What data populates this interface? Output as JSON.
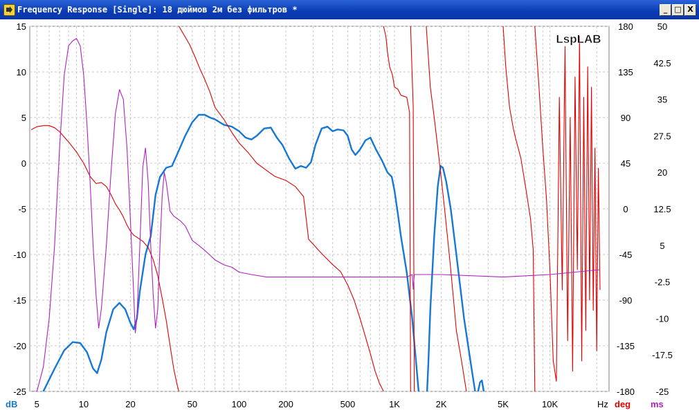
{
  "window": {
    "title": "Frequency Response [Single]: 18 дюймов 2м без фильтров *",
    "buttons": {
      "minimize": "_",
      "maximize": "□",
      "close": "X"
    }
  },
  "watermark": "LspLAB",
  "colors": {
    "db": "#1478d4",
    "deg": "#e00000",
    "ms": "#b020c0",
    "grid": "#c8c8c8"
  },
  "chart_data": {
    "type": "line",
    "x_scale": "log",
    "xlim": [
      4.5,
      24000
    ],
    "x_ticks": [
      {
        "v": 5,
        "label": "5"
      },
      {
        "v": 10,
        "label": "10"
      },
      {
        "v": 20,
        "label": "20"
      },
      {
        "v": 50,
        "label": "50"
      },
      {
        "v": 100,
        "label": "100"
      },
      {
        "v": 200,
        "label": "200"
      },
      {
        "v": 500,
        "label": "500"
      },
      {
        "v": 1000,
        "label": "1K"
      },
      {
        "v": 2000,
        "label": "2K"
      },
      {
        "v": 5000,
        "label": "5K"
      },
      {
        "v": 10000,
        "label": "10K"
      }
    ],
    "x_unit": "Hz",
    "grid": true,
    "axes": {
      "db": {
        "label": "dB",
        "range": [
          -25,
          15
        ],
        "ticks": [
          "15",
          "10",
          "5",
          "0",
          "-5",
          "-10",
          "-15",
          "-20",
          "-25"
        ]
      },
      "deg": {
        "label": "deg",
        "range": [
          -180,
          180
        ],
        "ticks": [
          "180",
          "135",
          "90",
          "45",
          "0",
          "-45",
          "-90",
          "-135",
          "-180"
        ]
      },
      "ms": {
        "label": "ms",
        "range": [
          -25,
          50
        ],
        "ticks": [
          "50",
          "42.5",
          "35",
          "27.5",
          "20",
          "12.5",
          "5",
          "-2.5",
          "-10",
          "-17.5",
          "-25"
        ]
      }
    },
    "series": [
      {
        "axis": "db",
        "color": "#1478d4",
        "points": [
          [
            5.5,
            -25
          ],
          [
            6.5,
            -22.5
          ],
          [
            7.5,
            -20.5
          ],
          [
            8.5,
            -19.6
          ],
          [
            9.5,
            -19.7
          ],
          [
            10.5,
            -20.7
          ],
          [
            11.5,
            -22.5
          ],
          [
            12.2,
            -23
          ],
          [
            13,
            -21.5
          ],
          [
            14,
            -18.5
          ],
          [
            15.5,
            -16
          ],
          [
            17,
            -15.3
          ],
          [
            18.5,
            -16
          ],
          [
            20,
            -17.5
          ],
          [
            21,
            -18.2
          ],
          [
            22,
            -17
          ],
          [
            23,
            -14
          ],
          [
            25,
            -10
          ],
          [
            27,
            -8
          ],
          [
            29,
            -3.5
          ],
          [
            31,
            -1.5
          ],
          [
            34,
            -0.5
          ],
          [
            37,
            -0.3
          ],
          [
            40,
            1
          ],
          [
            45,
            3
          ],
          [
            50,
            4.5
          ],
          [
            55,
            5.3
          ],
          [
            60,
            5.3
          ],
          [
            65,
            5
          ],
          [
            70,
            4.8
          ],
          [
            80,
            4.2
          ],
          [
            90,
            4
          ],
          [
            100,
            3.5
          ],
          [
            110,
            2.8
          ],
          [
            120,
            2.6
          ],
          [
            130,
            3
          ],
          [
            145,
            3.8
          ],
          [
            160,
            3.9
          ],
          [
            175,
            2.8
          ],
          [
            190,
            2
          ],
          [
            210,
            0.5
          ],
          [
            230,
            -0.6
          ],
          [
            250,
            -0.3
          ],
          [
            270,
            -0.5
          ],
          [
            290,
            0.1
          ],
          [
            310,
            2
          ],
          [
            340,
            3.8
          ],
          [
            370,
            4
          ],
          [
            400,
            3.5
          ],
          [
            430,
            3.7
          ],
          [
            470,
            3.6
          ],
          [
            500,
            3
          ],
          [
            530,
            1.5
          ],
          [
            560,
            0.9
          ],
          [
            600,
            1.5
          ],
          [
            650,
            2.5
          ],
          [
            700,
            2.8
          ],
          [
            760,
            1.5
          ],
          [
            830,
            0.3
          ],
          [
            900,
            -1
          ],
          [
            960,
            -1.5
          ],
          [
            1000,
            -3
          ],
          [
            1050,
            -5.5
          ],
          [
            1100,
            -8
          ],
          [
            1200,
            -12
          ],
          [
            1300,
            -17
          ],
          [
            1380,
            -22
          ],
          [
            1430,
            -25
          ]
        ]
      },
      {
        "axis": "db",
        "color": "#1478d4",
        "points": [
          [
            1620,
            -25
          ],
          [
            1650,
            -22
          ],
          [
            1700,
            -16
          ],
          [
            1800,
            -8
          ],
          [
            1900,
            -2.5
          ],
          [
            1980,
            -0.3
          ],
          [
            2050,
            -0.5
          ],
          [
            2150,
            -2
          ],
          [
            2300,
            -5
          ],
          [
            2500,
            -10
          ],
          [
            2800,
            -17
          ],
          [
            3100,
            -22
          ],
          [
            3300,
            -25
          ]
        ]
      },
      {
        "axis": "db",
        "color": "#1478d4",
        "points": [
          [
            3450,
            -25
          ],
          [
            3550,
            -24
          ],
          [
            3650,
            -23.8
          ],
          [
            3750,
            -25
          ]
        ]
      },
      {
        "axis": "deg",
        "color": "#e00000",
        "points": [
          [
            4.6,
            78
          ],
          [
            5,
            81
          ],
          [
            5.5,
            82
          ],
          [
            6,
            82
          ],
          [
            6.5,
            80
          ],
          [
            7,
            76
          ],
          [
            8,
            66
          ],
          [
            9,
            56
          ],
          [
            10,
            45
          ],
          [
            11,
            32
          ],
          [
            12,
            25
          ],
          [
            13,
            26
          ],
          [
            14,
            22
          ],
          [
            15,
            14
          ],
          [
            16,
            5
          ],
          [
            17,
            -1
          ],
          [
            18,
            -8
          ],
          [
            19,
            -16
          ],
          [
            20,
            -22
          ],
          [
            21,
            -26
          ],
          [
            22,
            -28
          ],
          [
            24,
            -32
          ],
          [
            26,
            -38
          ],
          [
            28,
            -50
          ],
          [
            30,
            -66
          ],
          [
            32,
            -88
          ],
          [
            34,
            -110
          ],
          [
            36,
            -135
          ],
          [
            38,
            -158
          ],
          [
            40,
            -174
          ],
          [
            41,
            -180
          ]
        ]
      },
      {
        "axis": "deg",
        "color": "#e00000",
        "points": [
          [
            41,
            180
          ],
          [
            44,
            172
          ],
          [
            48,
            162
          ],
          [
            52,
            150
          ],
          [
            56,
            138
          ],
          [
            60,
            128
          ],
          [
            65,
            115
          ],
          [
            70,
            100
          ],
          [
            80,
            88
          ],
          [
            90,
            75
          ],
          [
            100,
            65
          ],
          [
            115,
            55
          ],
          [
            130,
            45
          ],
          [
            150,
            38
          ],
          [
            170,
            32
          ],
          [
            200,
            28
          ],
          [
            230,
            22
          ],
          [
            260,
            12
          ],
          [
            280,
            -30
          ],
          [
            300,
            -35
          ],
          [
            330,
            -42
          ],
          [
            360,
            -48
          ],
          [
            400,
            -55
          ],
          [
            450,
            -62
          ],
          [
            500,
            -75
          ],
          [
            550,
            -90
          ],
          [
            600,
            -108
          ],
          [
            650,
            -126
          ],
          [
            700,
            -143
          ],
          [
            750,
            -160
          ],
          [
            800,
            -172
          ],
          [
            850,
            -180
          ]
        ]
      },
      {
        "axis": "deg",
        "color": "#e00000",
        "points": [
          [
            850,
            180
          ],
          [
            880,
            170
          ],
          [
            900,
            155
          ],
          [
            930,
            140
          ],
          [
            970,
            132
          ],
          [
            1000,
            120
          ],
          [
            1050,
            118
          ],
          [
            1100,
            112
          ],
          [
            1200,
            110
          ],
          [
            1250,
            95
          ],
          [
            1270,
            -180
          ]
        ]
      },
      {
        "axis": "deg",
        "color": "#e00000",
        "points": [
          [
            1270,
            180
          ],
          [
            1300,
            130
          ],
          [
            1320,
            100
          ],
          [
            1340,
            -180
          ]
        ]
      },
      {
        "axis": "deg",
        "color": "#e00000",
        "points": [
          [
            1600,
            180
          ],
          [
            1650,
            150
          ],
          [
            1700,
            120
          ],
          [
            1800,
            90
          ],
          [
            1900,
            60
          ],
          [
            2000,
            30
          ],
          [
            2100,
            0
          ],
          [
            2200,
            -30
          ],
          [
            2300,
            -60
          ],
          [
            2400,
            -90
          ],
          [
            2500,
            -120
          ],
          [
            2700,
            -150
          ],
          [
            2900,
            -180
          ]
        ]
      },
      {
        "axis": "deg",
        "color": "#e00000",
        "points": [
          [
            5000,
            180
          ],
          [
            5200,
            140
          ],
          [
            5500,
            100
          ],
          [
            5800,
            80
          ],
          [
            6000,
            70
          ],
          [
            6500,
            50
          ],
          [
            7000,
            20
          ],
          [
            7500,
            -10
          ],
          [
            7800,
            -40
          ],
          [
            8000,
            -180
          ]
        ]
      },
      {
        "axis": "deg",
        "color": "#e00000",
        "points": [
          [
            8000,
            180
          ],
          [
            8500,
            120
          ],
          [
            9000,
            60
          ],
          [
            9500,
            10
          ],
          [
            10000,
            -60
          ],
          [
            10500,
            -150
          ],
          [
            11000,
            -170
          ],
          [
            11500,
            110
          ],
          [
            12000,
            -80
          ],
          [
            12500,
            160
          ],
          [
            13000,
            -130
          ],
          [
            13500,
            90
          ],
          [
            14000,
            -160
          ],
          [
            14500,
            130
          ],
          [
            15000,
            -60
          ],
          [
            15500,
            170
          ],
          [
            16000,
            -150
          ],
          [
            16500,
            110
          ],
          [
            17000,
            -120
          ],
          [
            17500,
            140
          ],
          [
            18000,
            -90
          ],
          [
            18500,
            120
          ],
          [
            19000,
            -100
          ],
          [
            19500,
            60
          ],
          [
            20000,
            -140
          ],
          [
            20500,
            40
          ],
          [
            21000,
            -80
          ]
        ]
      },
      {
        "axis": "ms",
        "color": "#b020c0",
        "points": [
          [
            4.6,
            -25
          ],
          [
            5,
            -25
          ],
          [
            5.5,
            -20
          ],
          [
            6,
            -10
          ],
          [
            6.5,
            5
          ],
          [
            7,
            25
          ],
          [
            7.5,
            40
          ],
          [
            8,
            46
          ],
          [
            8.5,
            47
          ],
          [
            9,
            47.5
          ],
          [
            9.5,
            46
          ],
          [
            10,
            40
          ],
          [
            10.5,
            30
          ],
          [
            11,
            18
          ],
          [
            11.5,
            5
          ],
          [
            12,
            -5
          ],
          [
            12.5,
            -12
          ],
          [
            13,
            -8
          ],
          [
            14,
            5
          ],
          [
            15,
            20
          ],
          [
            16,
            32
          ],
          [
            17,
            37
          ],
          [
            18,
            35
          ],
          [
            19,
            25
          ],
          [
            20,
            10
          ],
          [
            21,
            -5
          ],
          [
            21.5,
            -13
          ],
          [
            22,
            -10
          ],
          [
            23,
            5
          ],
          [
            24,
            21
          ],
          [
            25,
            25
          ],
          [
            26,
            18
          ],
          [
            27,
            5
          ],
          [
            28,
            -5
          ],
          [
            29,
            -12
          ],
          [
            30,
            -8
          ],
          [
            31,
            5
          ],
          [
            32,
            15
          ],
          [
            33,
            20
          ],
          [
            34,
            18
          ],
          [
            36,
            12
          ],
          [
            38,
            11
          ],
          [
            42,
            10
          ],
          [
            45,
            9
          ],
          [
            50,
            6
          ],
          [
            55,
            5
          ],
          [
            60,
            4
          ],
          [
            65,
            3
          ],
          [
            70,
            2
          ],
          [
            80,
            1
          ],
          [
            90,
            0.5
          ],
          [
            100,
            -0.5
          ],
          [
            120,
            -1
          ],
          [
            150,
            -1.5
          ],
          [
            200,
            -1.5
          ],
          [
            300,
            -1.5
          ],
          [
            500,
            -1.5
          ],
          [
            1000,
            -1.5
          ],
          [
            1200,
            -1.5
          ],
          [
            1300,
            -1
          ],
          [
            1320,
            -4
          ],
          [
            1340,
            -1
          ],
          [
            2000,
            -1
          ],
          [
            5000,
            -1.5
          ],
          [
            10000,
            -1
          ],
          [
            21000,
            0
          ]
        ]
      }
    ]
  }
}
